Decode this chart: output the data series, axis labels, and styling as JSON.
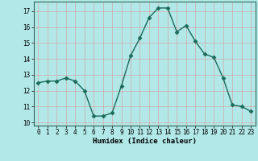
{
  "x": [
    0,
    1,
    2,
    3,
    4,
    5,
    6,
    7,
    8,
    9,
    10,
    11,
    12,
    13,
    14,
    15,
    16,
    17,
    18,
    19,
    20,
    21,
    22,
    23
  ],
  "y": [
    12.5,
    12.6,
    12.6,
    12.8,
    12.6,
    12.0,
    10.4,
    10.4,
    10.6,
    12.3,
    14.2,
    15.3,
    16.6,
    17.2,
    17.2,
    15.7,
    16.1,
    15.1,
    14.3,
    14.1,
    12.8,
    11.1,
    11.0,
    10.7
  ],
  "line_color": "#1a6b5a",
  "marker": "D",
  "marker_size": 2.5,
  "bg_color": "#b2e8e8",
  "grid_color": "#d4a8a8",
  "xlabel": "Humidex (Indice chaleur)",
  "ylim": [
    9.8,
    17.6
  ],
  "xlim": [
    -0.5,
    23.5
  ],
  "yticks": [
    10,
    11,
    12,
    13,
    14,
    15,
    16,
    17
  ],
  "xticks": [
    0,
    1,
    2,
    3,
    4,
    5,
    6,
    7,
    8,
    9,
    10,
    11,
    12,
    13,
    14,
    15,
    16,
    17,
    18,
    19,
    20,
    21,
    22,
    23
  ],
  "xlabel_fontsize": 6.5,
  "tick_fontsize": 5.5,
  "line_width": 1.0,
  "spine_color": "#336655"
}
